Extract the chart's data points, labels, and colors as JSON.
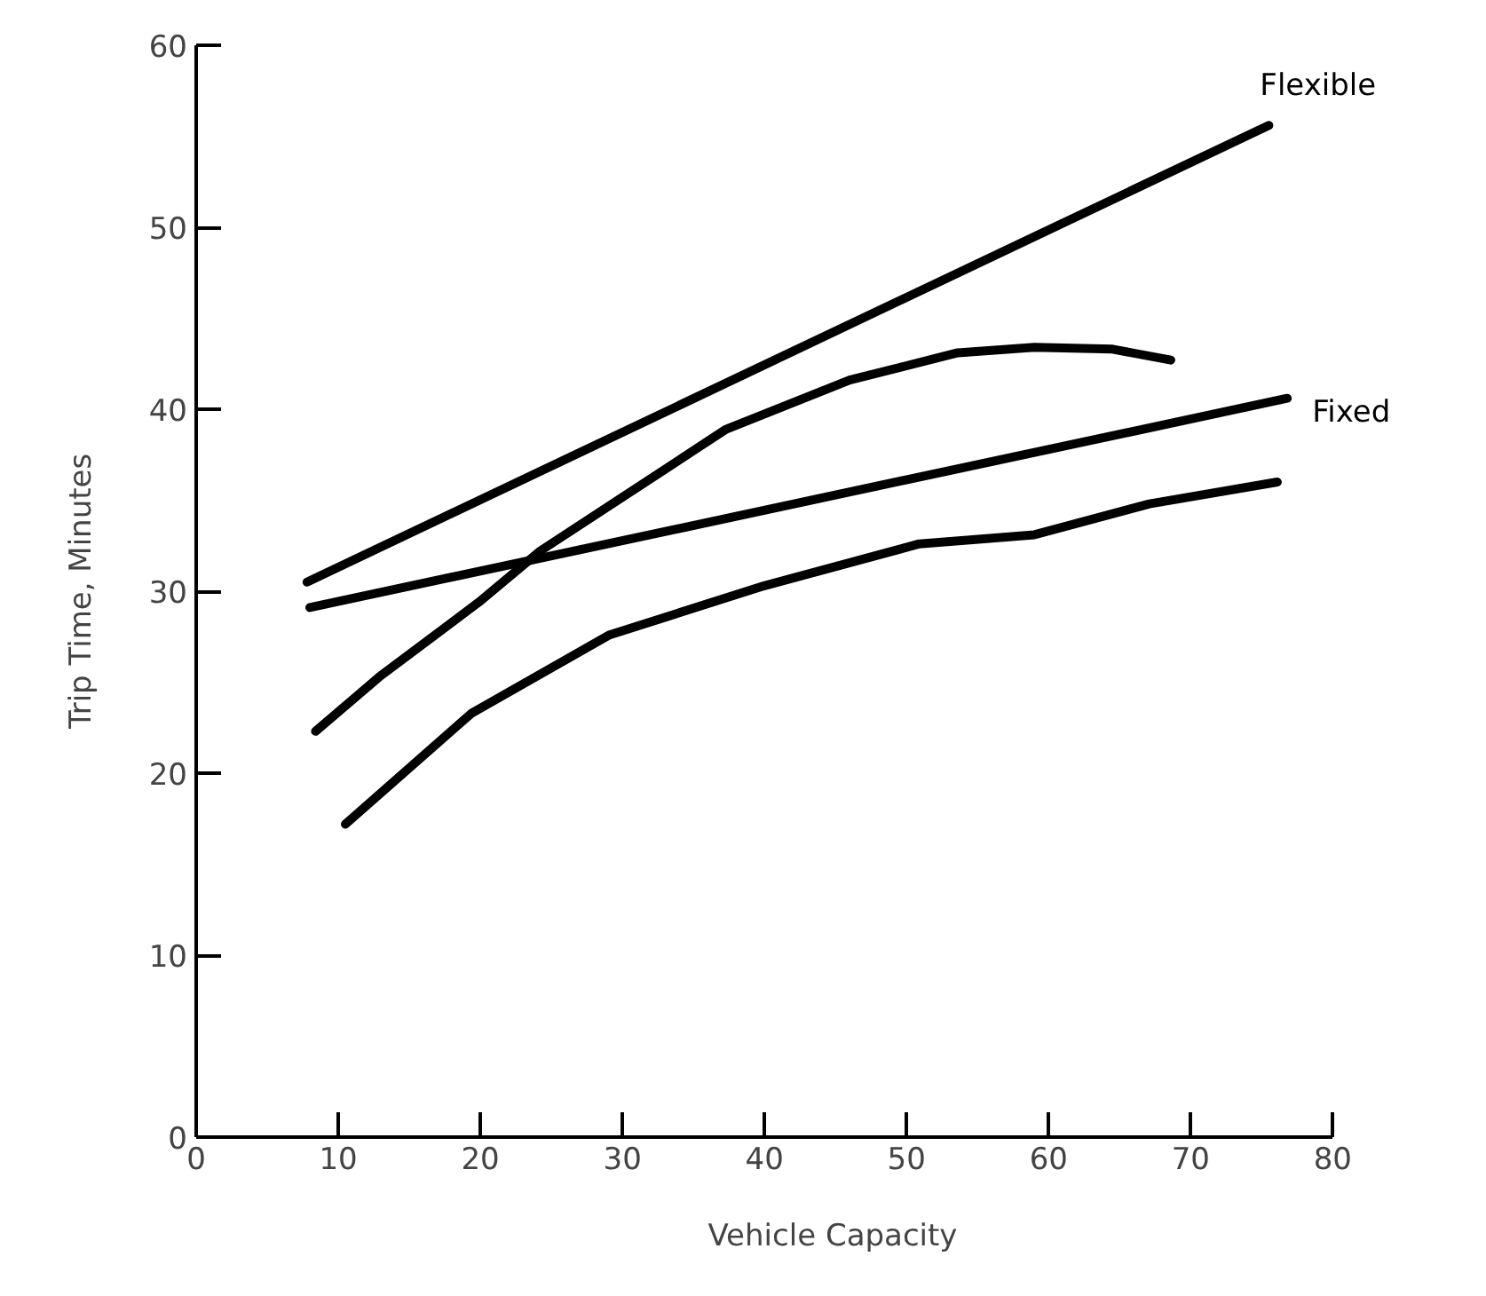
{
  "chart_data": {
    "type": "line",
    "xlabel": "Vehicle Capacity",
    "ylabel": "Trip Time, Minutes",
    "xlim": [
      0,
      80
    ],
    "ylim": [
      0,
      60
    ],
    "xticks": [
      0,
      10,
      20,
      30,
      40,
      50,
      60,
      70,
      80
    ],
    "yticks": [
      0,
      10,
      20,
      30,
      40,
      50,
      60
    ],
    "grid": false,
    "marker": "none",
    "line_style": "solid",
    "series": [
      {
        "name": "Flexible",
        "color": "#000000",
        "x": [
          7.8,
          75.5
        ],
        "values": [
          30.5,
          55.6
        ]
      },
      {
        "name": "Fixed",
        "color": "#000000",
        "x": [
          8,
          76.8
        ],
        "values": [
          29.1,
          40.6
        ]
      },
      {
        "color": "#000000",
        "x": [
          8.4,
          12.9,
          19.9,
          24.2,
          37.3,
          46,
          53.6,
          59,
          64.5,
          68.6
        ],
        "values": [
          22.3,
          25.3,
          29.4,
          32.2,
          38.9,
          41.6,
          43.1,
          43.4,
          43.3,
          42.7
        ]
      },
      {
        "color": "#000000",
        "x": [
          10.5,
          19.4,
          29.1,
          40,
          50.9,
          59,
          67.1,
          76.1
        ],
        "values": [
          17.2,
          23.3,
          27.6,
          30.3,
          32.6,
          33.1,
          34.8,
          36.0
        ]
      }
    ]
  }
}
